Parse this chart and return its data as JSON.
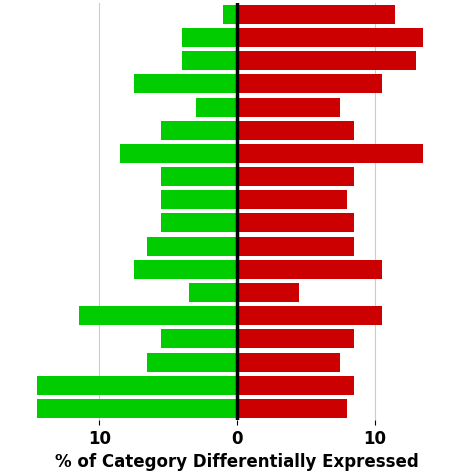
{
  "pairs": [
    {
      "green": -1.0,
      "red": 11.5
    },
    {
      "green": -4.0,
      "red": 13.5
    },
    {
      "green": -4.0,
      "red": 13.0
    },
    {
      "green": -7.5,
      "red": 10.5
    },
    {
      "green": -3.0,
      "red": 7.5
    },
    {
      "green": -5.5,
      "red": 8.5
    },
    {
      "green": -8.5,
      "red": 13.5
    },
    {
      "green": -5.5,
      "red": 8.5
    },
    {
      "green": -5.5,
      "red": 8.0
    },
    {
      "green": -5.5,
      "red": 8.5
    },
    {
      "green": -6.5,
      "red": 8.5
    },
    {
      "green": -7.5,
      "red": 10.5
    },
    {
      "green": -3.5,
      "red": 4.5
    },
    {
      "green": -11.5,
      "red": 10.5
    },
    {
      "green": -5.5,
      "red": 8.5
    },
    {
      "green": -6.5,
      "red": 7.5
    },
    {
      "green": -14.5,
      "red": 8.5
    },
    {
      "green": -14.5,
      "red": 8.0
    }
  ],
  "green_color": "#00CC00",
  "red_color": "#CC0000",
  "background_color": "#ffffff",
  "grid_color": "#cccccc",
  "xlabel": "% of Category Differentially Expressed",
  "xlabel_fontsize": 12,
  "tick_fontsize": 12,
  "xlim": [
    -17,
    17
  ],
  "xticks": [
    -10,
    0,
    10
  ],
  "xticklabels": [
    "10",
    "0",
    "10"
  ]
}
